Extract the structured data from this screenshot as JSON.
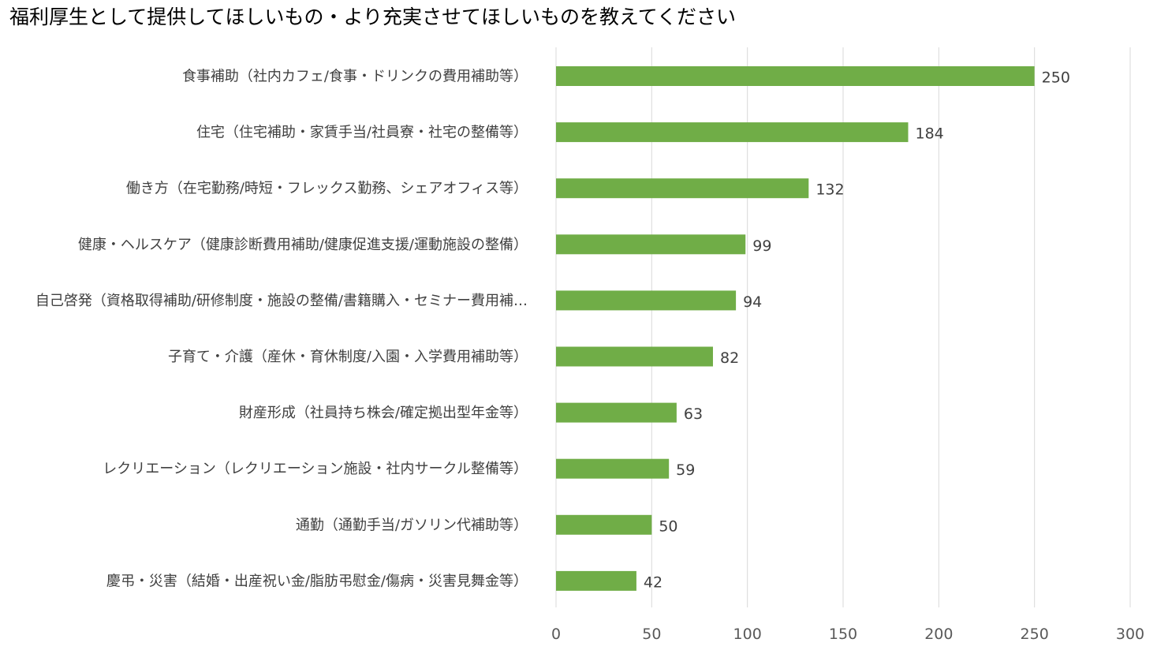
{
  "chart_data": {
    "type": "bar",
    "orientation": "horizontal",
    "title": "福利厚生として提供してほしいもの・より充実させてほしいものを教えてください",
    "xlabel": "",
    "ylabel": "",
    "categories": [
      "食事補助（社内カフェ/食事・ドリンクの費用補助等）",
      "住宅（住宅補助・家賃手当/社員寮・社宅の整備等）",
      "働き方（在宅勤務/時短・フレックス勤務、シェアオフィス等）",
      "健康・ヘルスケア（健康診断費用補助/健康促進支援/運動施設の整備）",
      "自己啓発（資格取得補助/研修制度・施設の整備/書籍購入・セミナー費用補…",
      "子育て・介護（産休・育休制度/入園・入学費用補助等）",
      "財産形成（社員持ち株会/確定拠出型年金等）",
      "レクリエーション（レクリエーション施設・社内サークル整備等）",
      "通勤（通勤手当/ガソリン代補助等）",
      "慶弔・災害（結婚・出産祝い金/脂肪弔慰金/傷病・災害見舞金等）"
    ],
    "values": [
      250,
      184,
      132,
      99,
      94,
      82,
      63,
      59,
      50,
      42
    ],
    "value_labels": [
      "250",
      "184",
      "132",
      "99",
      "94",
      "82",
      "63",
      "59",
      "50",
      "42"
    ],
    "xlim": [
      0,
      300
    ],
    "xticks": [
      0,
      50,
      100,
      150,
      200,
      250,
      300
    ],
    "xtick_labels": [
      "0",
      "50",
      "100",
      "150",
      "200",
      "250",
      "300"
    ],
    "grid": true,
    "legend": "none",
    "bar_color": "#70AD47"
  }
}
